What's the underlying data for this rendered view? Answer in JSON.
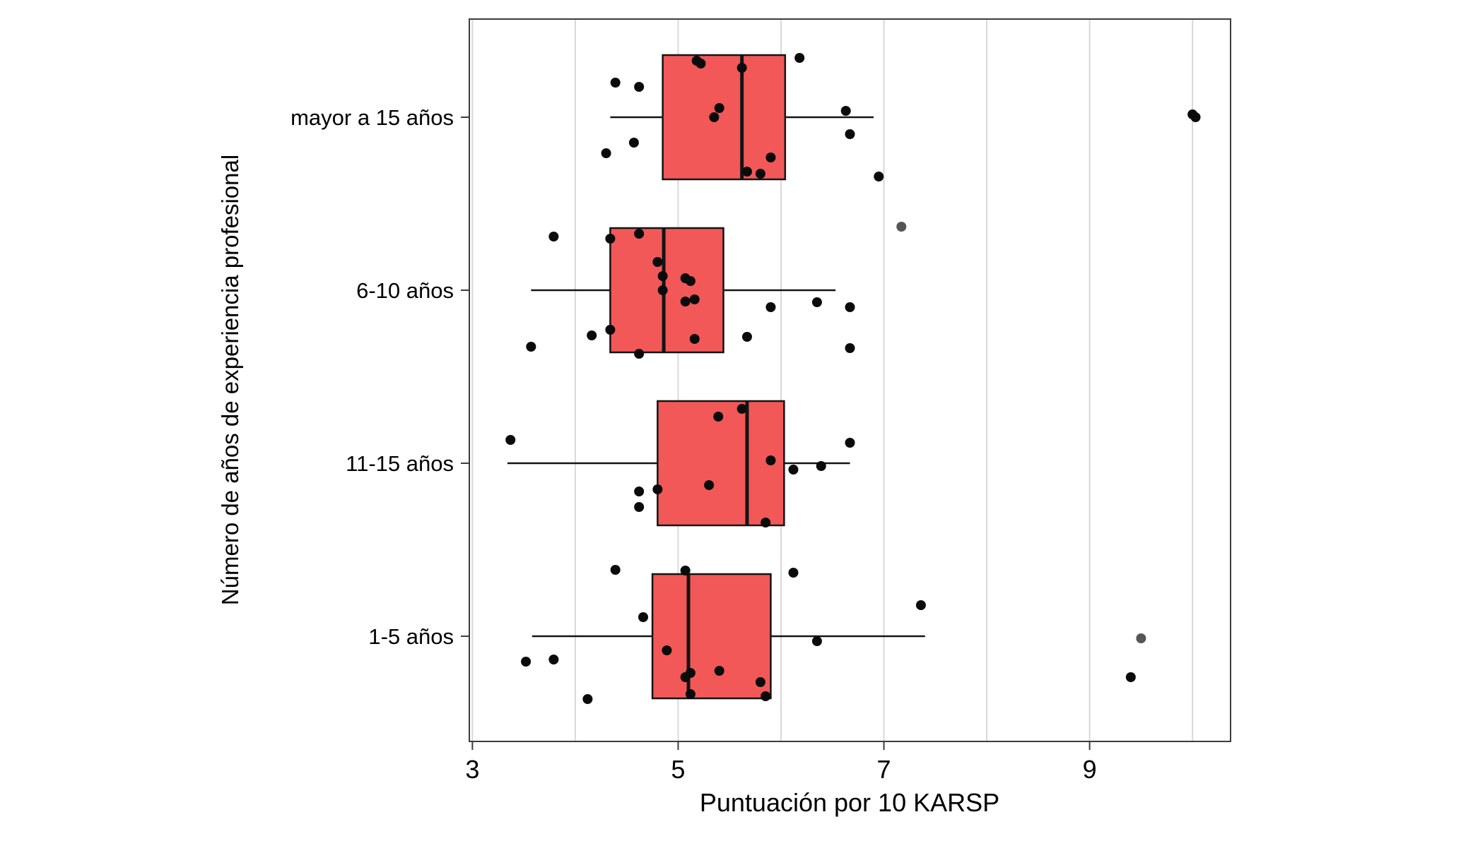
{
  "chart_data": {
    "type": "boxplot",
    "orientation": "horizontal",
    "title": "",
    "xlabel": "Puntuación por 10 KARSP",
    "ylabel": "Número de años de experiencia profesional",
    "xlim": [
      2.97,
      10.37
    ],
    "x_ticks": [
      3,
      5,
      7,
      9
    ],
    "x_gridlines": [
      3,
      4,
      5,
      6,
      7,
      8,
      9,
      10
    ],
    "legend": "none",
    "colors": {
      "box_fill": "#f25858",
      "box_border": "#141414",
      "point": "#0b0b0b",
      "point_gray": "#555555",
      "grid": "#d8d8d8",
      "panel_border": "#3c3c3c",
      "text": "#000000"
    },
    "groups": [
      {
        "label": "mayor a 15 años",
        "q1": 4.85,
        "median": 5.62,
        "q3": 6.04,
        "whisker_low": 4.34,
        "whisker_high": 6.9,
        "points": [
          [
            5.18,
            -80
          ],
          [
            5.22,
            -76
          ],
          [
            6.18,
            -84
          ],
          [
            4.39,
            -49
          ],
          [
            4.62,
            -43
          ],
          [
            5.62,
            -70
          ],
          [
            5.4,
            -13
          ],
          [
            6.63,
            -9
          ],
          [
            5.35,
            0
          ],
          [
            10.0,
            -4
          ],
          [
            10.03,
            0
          ],
          [
            6.67,
            24
          ],
          [
            4.57,
            36
          ],
          [
            4.3,
            51
          ],
          [
            5.9,
            57
          ],
          [
            5.67,
            77
          ],
          [
            5.8,
            80
          ],
          [
            6.95,
            84
          ]
        ]
      },
      {
        "label": "6-10 años",
        "q1": 4.34,
        "median": 4.86,
        "q3": 5.44,
        "whisker_low": 3.57,
        "whisker_high": 6.53,
        "points": [
          [
            7.17,
            -90,
            "gray"
          ],
          [
            4.62,
            -80
          ],
          [
            3.79,
            -76
          ],
          [
            4.34,
            -73
          ],
          [
            4.8,
            -40
          ],
          [
            4.85,
            -20
          ],
          [
            5.07,
            -17
          ],
          [
            5.12,
            -13
          ],
          [
            4.85,
            0
          ],
          [
            5.16,
            13
          ],
          [
            5.07,
            16
          ],
          [
            6.35,
            17
          ],
          [
            5.9,
            24
          ],
          [
            6.67,
            24
          ],
          [
            4.34,
            56
          ],
          [
            4.16,
            64
          ],
          [
            5.67,
            66
          ],
          [
            5.16,
            69
          ],
          [
            3.57,
            80
          ],
          [
            6.67,
            82
          ],
          [
            4.62,
            90
          ]
        ]
      },
      {
        "label": "11-15 años",
        "q1": 4.8,
        "median": 5.67,
        "q3": 6.03,
        "whisker_low": 3.34,
        "whisker_high": 6.67,
        "points": [
          [
            5.62,
            -77
          ],
          [
            5.39,
            -66
          ],
          [
            3.37,
            -33
          ],
          [
            6.67,
            -29
          ],
          [
            5.9,
            -4
          ],
          [
            6.39,
            4
          ],
          [
            6.12,
            9
          ],
          [
            5.3,
            31
          ],
          [
            4.8,
            37
          ],
          [
            4.62,
            40
          ],
          [
            4.62,
            62
          ],
          [
            5.85,
            84
          ]
        ]
      },
      {
        "label": "1-5 años",
        "q1": 4.75,
        "median": 5.1,
        "q3": 5.9,
        "whisker_low": 3.58,
        "whisker_high": 7.4,
        "points": [
          [
            4.39,
            -94
          ],
          [
            5.07,
            -93
          ],
          [
            6.12,
            -90
          ],
          [
            7.36,
            -44
          ],
          [
            4.66,
            -27
          ],
          [
            6.35,
            7
          ],
          [
            9.5,
            3,
            "gray"
          ],
          [
            4.89,
            20
          ],
          [
            3.79,
            33
          ],
          [
            3.52,
            36
          ],
          [
            5.4,
            49
          ],
          [
            5.12,
            52
          ],
          [
            9.4,
            58
          ],
          [
            5.07,
            58
          ],
          [
            5.8,
            65
          ],
          [
            5.12,
            82
          ],
          [
            5.85,
            85
          ],
          [
            4.12,
            89
          ]
        ]
      }
    ]
  }
}
